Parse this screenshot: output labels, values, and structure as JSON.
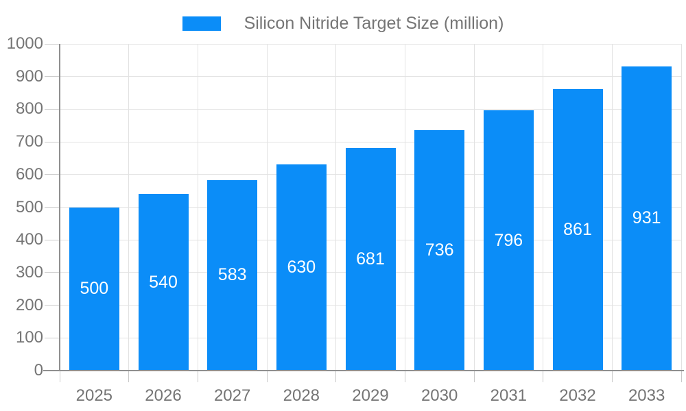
{
  "legend": {
    "label": "Silicon Nitride Target Size (million)"
  },
  "chart_data": {
    "type": "bar",
    "title": "",
    "series_name": "Silicon Nitride Target Size (million)",
    "categories": [
      "2025",
      "2026",
      "2027",
      "2028",
      "2029",
      "2030",
      "2031",
      "2032",
      "2033"
    ],
    "values": [
      500,
      540,
      583,
      630,
      681,
      736,
      796,
      861,
      931
    ],
    "xlabel": "",
    "ylabel": "",
    "ylim": [
      0,
      1000
    ],
    "yticks": [
      0,
      100,
      200,
      300,
      400,
      500,
      600,
      700,
      800,
      900,
      1000
    ],
    "grid": true,
    "legend_position": "top",
    "value_labels": "inside-center",
    "colors": {
      "bar": "#0b8df8",
      "axis_text": "#757575",
      "value_text": "#ffffff"
    }
  }
}
